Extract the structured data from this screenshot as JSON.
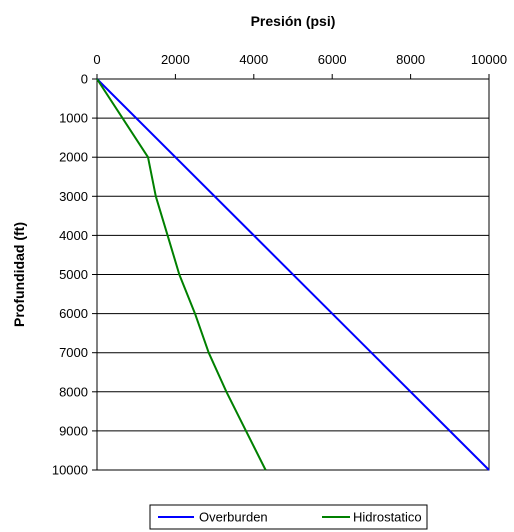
{
  "chart_data": {
    "type": "line",
    "title": "",
    "xlabel": "Presión (psi)",
    "ylabel": "Profundidad (ft)",
    "x_axis_position": "top",
    "y_axis_inverted": true,
    "xlim": [
      0,
      10000
    ],
    "ylim": [
      0,
      10000
    ],
    "x_ticks": [
      "0",
      "2000",
      "4000",
      "6000",
      "8000",
      "10000"
    ],
    "y_ticks": [
      "0",
      "1000",
      "2000",
      "3000",
      "4000",
      "5000",
      "6000",
      "7000",
      "8000",
      "9000",
      "10000"
    ],
    "grid": "horizontal",
    "legend_position": "bottom",
    "series": [
      {
        "name": "Overburden",
        "color": "#0000ff",
        "points": [
          [
            0,
            0
          ],
          [
            10000,
            10000
          ]
        ]
      },
      {
        "name": "Hidrostatico",
        "color": "#008000",
        "points": [
          [
            0,
            0
          ],
          [
            650,
            1000
          ],
          [
            1300,
            2000
          ],
          [
            1500,
            3000
          ],
          [
            1800,
            4000
          ],
          [
            2100,
            5000
          ],
          [
            2500,
            6000
          ],
          [
            2850,
            7000
          ],
          [
            3300,
            8000
          ],
          [
            3800,
            9000
          ],
          [
            4300,
            10000
          ]
        ]
      }
    ]
  }
}
